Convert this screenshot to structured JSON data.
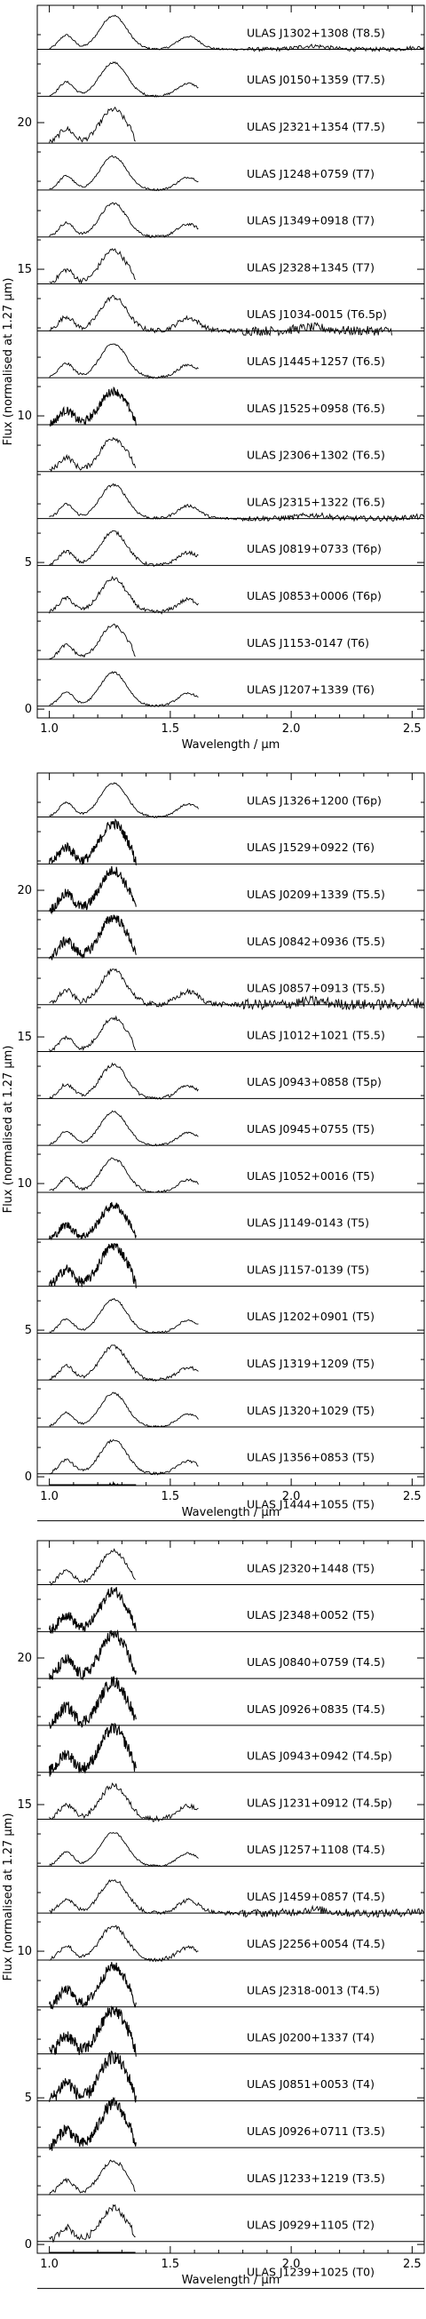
{
  "chart_data": [
    {
      "type": "line",
      "title": "",
      "xlabel": "Wavelength / μm",
      "ylabel": "Flux (normalised at 1.27 μm)",
      "xlim": [
        0.95,
        2.55
      ],
      "ylim": [
        -0.3,
        24.0
      ],
      "x_ticks": [
        1.0,
        1.5,
        2.0,
        2.5
      ],
      "x_tick_labels": [
        "1.0",
        "1.5",
        "2.0",
        "2.5"
      ],
      "y_ticks": [
        0,
        5,
        10,
        15,
        20
      ],
      "y_tick_labels": [
        "0",
        "5",
        "10",
        "15",
        "20"
      ],
      "grid": false,
      "legend": "none",
      "series": [
        {
          "label": "ULAS J1302+1308 (T8.5)",
          "offset": 22.5,
          "xmax": 2.55,
          "noise": 0.03,
          "peak": 1.0
        },
        {
          "label": "ULAS J0150+1359 (T7.5)",
          "offset": 20.9,
          "xmax": 1.62,
          "noise": 0.03,
          "peak": 1.0
        },
        {
          "label": "ULAS J2321+1354 (T7.5)",
          "offset": 19.3,
          "xmax": 1.36,
          "noise": 0.08,
          "peak": 1.0
        },
        {
          "label": "ULAS J1248+0759 (T7)",
          "offset": 17.7,
          "xmax": 1.62,
          "noise": 0.03,
          "peak": 1.0
        },
        {
          "label": "ULAS J1349+0918 (T7)",
          "offset": 16.1,
          "xmax": 1.62,
          "noise": 0.04,
          "peak": 1.0
        },
        {
          "label": "ULAS J2328+1345 (T7)",
          "offset": 14.5,
          "xmax": 1.36,
          "noise": 0.08,
          "peak": 1.0
        },
        {
          "label": "ULAS J1034-0015 (T6.5p)",
          "offset": 12.9,
          "xmax": 2.42,
          "noise": 0.07,
          "peak": 1.0
        },
        {
          "label": "ULAS J1445+1257 (T6.5)",
          "offset": 11.3,
          "xmax": 1.62,
          "noise": 0.04,
          "peak": 1.0
        },
        {
          "label": "ULAS J1525+0958 (T6.5)",
          "offset": 9.7,
          "xmax": 1.36,
          "noise": 0.12,
          "peak": 1.0
        },
        {
          "label": "ULAS J2306+1302 (T6.5)",
          "offset": 8.1,
          "xmax": 1.36,
          "noise": 0.08,
          "peak": 1.0
        },
        {
          "label": "ULAS J2315+1322 (T6.5)",
          "offset": 6.5,
          "xmax": 2.55,
          "noise": 0.04,
          "peak": 1.0
        },
        {
          "label": "ULAS J0819+0733 (T6p)",
          "offset": 4.9,
          "xmax": 1.62,
          "noise": 0.05,
          "peak": 1.0
        },
        {
          "label": "ULAS J0853+0006 (T6p)",
          "offset": 3.3,
          "xmax": 1.62,
          "noise": 0.06,
          "peak": 1.0
        },
        {
          "label": "ULAS J1153-0147 (T6)",
          "offset": 1.7,
          "xmax": 1.36,
          "noise": 0.05,
          "peak": 1.0
        },
        {
          "label": "ULAS J1207+1339 (T6)",
          "offset": 0.1,
          "xmax": 1.62,
          "noise": 0.03,
          "peak": 1.0
        }
      ]
    },
    {
      "type": "line",
      "title": "",
      "xlabel": "Wavelength / μm",
      "ylabel": "Flux (normalised at 1.27 μm)",
      "xlim": [
        0.95,
        2.55
      ],
      "ylim": [
        -0.3,
        24.0
      ],
      "x_ticks": [
        1.0,
        1.5,
        2.0,
        2.5
      ],
      "x_tick_labels": [
        "1.0",
        "1.5",
        "2.0",
        "2.5"
      ],
      "y_ticks": [
        0,
        5,
        10,
        15,
        20
      ],
      "y_tick_labels": [
        "0",
        "5",
        "10",
        "15",
        "20"
      ],
      "grid": false,
      "legend": "none",
      "series": [
        {
          "label": "ULAS J1326+1200 (T6p)",
          "offset": 22.5,
          "xmax": 1.62,
          "noise": 0.03,
          "peak": 1.0
        },
        {
          "label": "ULAS J1529+0922 (T6)",
          "offset": 20.9,
          "xmax": 1.36,
          "noise": 0.15,
          "peak": 1.2
        },
        {
          "label": "ULAS J0209+1339 (T5.5)",
          "offset": 19.3,
          "xmax": 1.36,
          "noise": 0.15,
          "peak": 1.2
        },
        {
          "label": "ULAS J0842+0936 (T5.5)",
          "offset": 17.7,
          "xmax": 1.36,
          "noise": 0.15,
          "peak": 1.2
        },
        {
          "label": "ULAS J0857+0913 (T5.5)",
          "offset": 16.1,
          "xmax": 2.55,
          "noise": 0.08,
          "peak": 1.0
        },
        {
          "label": "ULAS J1012+1021 (T5.5)",
          "offset": 14.5,
          "xmax": 1.36,
          "noise": 0.06,
          "peak": 1.0
        },
        {
          "label": "ULAS J0943+0858 (T5p)",
          "offset": 12.9,
          "xmax": 1.62,
          "noise": 0.05,
          "peak": 1.0
        },
        {
          "label": "ULAS J0945+0755 (T5)",
          "offset": 11.3,
          "xmax": 1.62,
          "noise": 0.03,
          "peak": 1.0
        },
        {
          "label": "ULAS J1052+0016 (T5)",
          "offset": 9.7,
          "xmax": 1.62,
          "noise": 0.04,
          "peak": 1.0
        },
        {
          "label": "ULAS J1149-0143 (T5)",
          "offset": 8.1,
          "xmax": 1.36,
          "noise": 0.12,
          "peak": 1.0
        },
        {
          "label": "ULAS J1157-0139 (T5)",
          "offset": 6.5,
          "xmax": 1.36,
          "noise": 0.15,
          "peak": 1.2
        },
        {
          "label": "ULAS J1202+0901 (T5)",
          "offset": 4.9,
          "xmax": 1.62,
          "noise": 0.03,
          "peak": 1.0
        },
        {
          "label": "ULAS J1319+1209 (T5)",
          "offset": 3.3,
          "xmax": 1.62,
          "noise": 0.05,
          "peak": 1.0
        },
        {
          "label": "ULAS J1320+1029 (T5)",
          "offset": 1.7,
          "xmax": 1.62,
          "noise": 0.03,
          "peak": 1.0
        },
        {
          "label": "ULAS J1356+0853 (T5)",
          "offset": 0.1,
          "xmax": 1.62,
          "noise": 0.04,
          "peak": 1.0
        },
        {
          "label": "ULAS J1444+1055 (T5)",
          "offset": -1.5,
          "xmax": 1.36,
          "noise": 0.15,
          "peak": 1.0
        }
      ]
    },
    {
      "type": "line",
      "title": "",
      "xlabel": "Wavelength / μm",
      "ylabel": "Flux (normalised at 1.27 μm)",
      "xlim": [
        0.95,
        2.55
      ],
      "ylim": [
        -0.3,
        24.0
      ],
      "x_ticks": [
        1.0,
        1.5,
        2.0,
        2.5
      ],
      "x_tick_labels": [
        "1.0",
        "1.5",
        "2.0",
        "2.5"
      ],
      "y_ticks": [
        0,
        5,
        10,
        15,
        20
      ],
      "y_tick_labels": [
        "0",
        "5",
        "10",
        "15",
        "20"
      ],
      "grid": false,
      "legend": "none",
      "series": [
        {
          "label": "ULAS J2320+1448 (T5)",
          "offset": 22.5,
          "xmax": 1.36,
          "noise": 0.06,
          "peak": 1.0
        },
        {
          "label": "ULAS J2348+0052 (T5)",
          "offset": 20.9,
          "xmax": 1.36,
          "noise": 0.15,
          "peak": 1.2
        },
        {
          "label": "ULAS J0840+0759 (T4.5)",
          "offset": 19.3,
          "xmax": 1.36,
          "noise": 0.18,
          "peak": 1.3
        },
        {
          "label": "ULAS J0926+0835 (T4.5)",
          "offset": 17.7,
          "xmax": 1.36,
          "noise": 0.18,
          "peak": 1.3
        },
        {
          "label": "ULAS J0943+0942 (T4.5p)",
          "offset": 16.1,
          "xmax": 1.36,
          "noise": 0.18,
          "peak": 1.3
        },
        {
          "label": "ULAS J1231+0912 (T4.5p)",
          "offset": 14.5,
          "xmax": 1.62,
          "noise": 0.08,
          "peak": 1.0
        },
        {
          "label": "ULAS J1257+1108 (T4.5)",
          "offset": 12.9,
          "xmax": 1.62,
          "noise": 0.03,
          "peak": 1.0
        },
        {
          "label": "ULAS J1459+0857 (T4.5)",
          "offset": 11.3,
          "xmax": 2.55,
          "noise": 0.06,
          "peak": 1.0
        },
        {
          "label": "ULAS J2256+0054 (T4.5)",
          "offset": 9.7,
          "xmax": 1.62,
          "noise": 0.06,
          "peak": 1.0
        },
        {
          "label": "ULAS J2318-0013 (T4.5)",
          "offset": 8.1,
          "xmax": 1.36,
          "noise": 0.15,
          "peak": 1.2
        },
        {
          "label": "ULAS J0200+1337 (T4)",
          "offset": 6.5,
          "xmax": 1.36,
          "noise": 0.2,
          "peak": 1.3
        },
        {
          "label": "ULAS J0851+0053 (T4)",
          "offset": 4.9,
          "xmax": 1.36,
          "noise": 0.2,
          "peak": 1.3
        },
        {
          "label": "ULAS J0926+0711 (T3.5)",
          "offset": 3.3,
          "xmax": 1.36,
          "noise": 0.18,
          "peak": 1.3
        },
        {
          "label": "ULAS J1233+1219 (T3.5)",
          "offset": 1.7,
          "xmax": 1.36,
          "noise": 0.06,
          "peak": 1.0
        },
        {
          "label": "ULAS J0929+1105 (T2)",
          "offset": 0.1,
          "xmax": 1.36,
          "noise": 0.1,
          "peak": 1.0
        },
        {
          "label": "ULAS J1239+1025 (T0)",
          "offset": -1.5,
          "xmax": 1.36,
          "noise": 0.1,
          "peak": 1.0
        }
      ]
    }
  ]
}
